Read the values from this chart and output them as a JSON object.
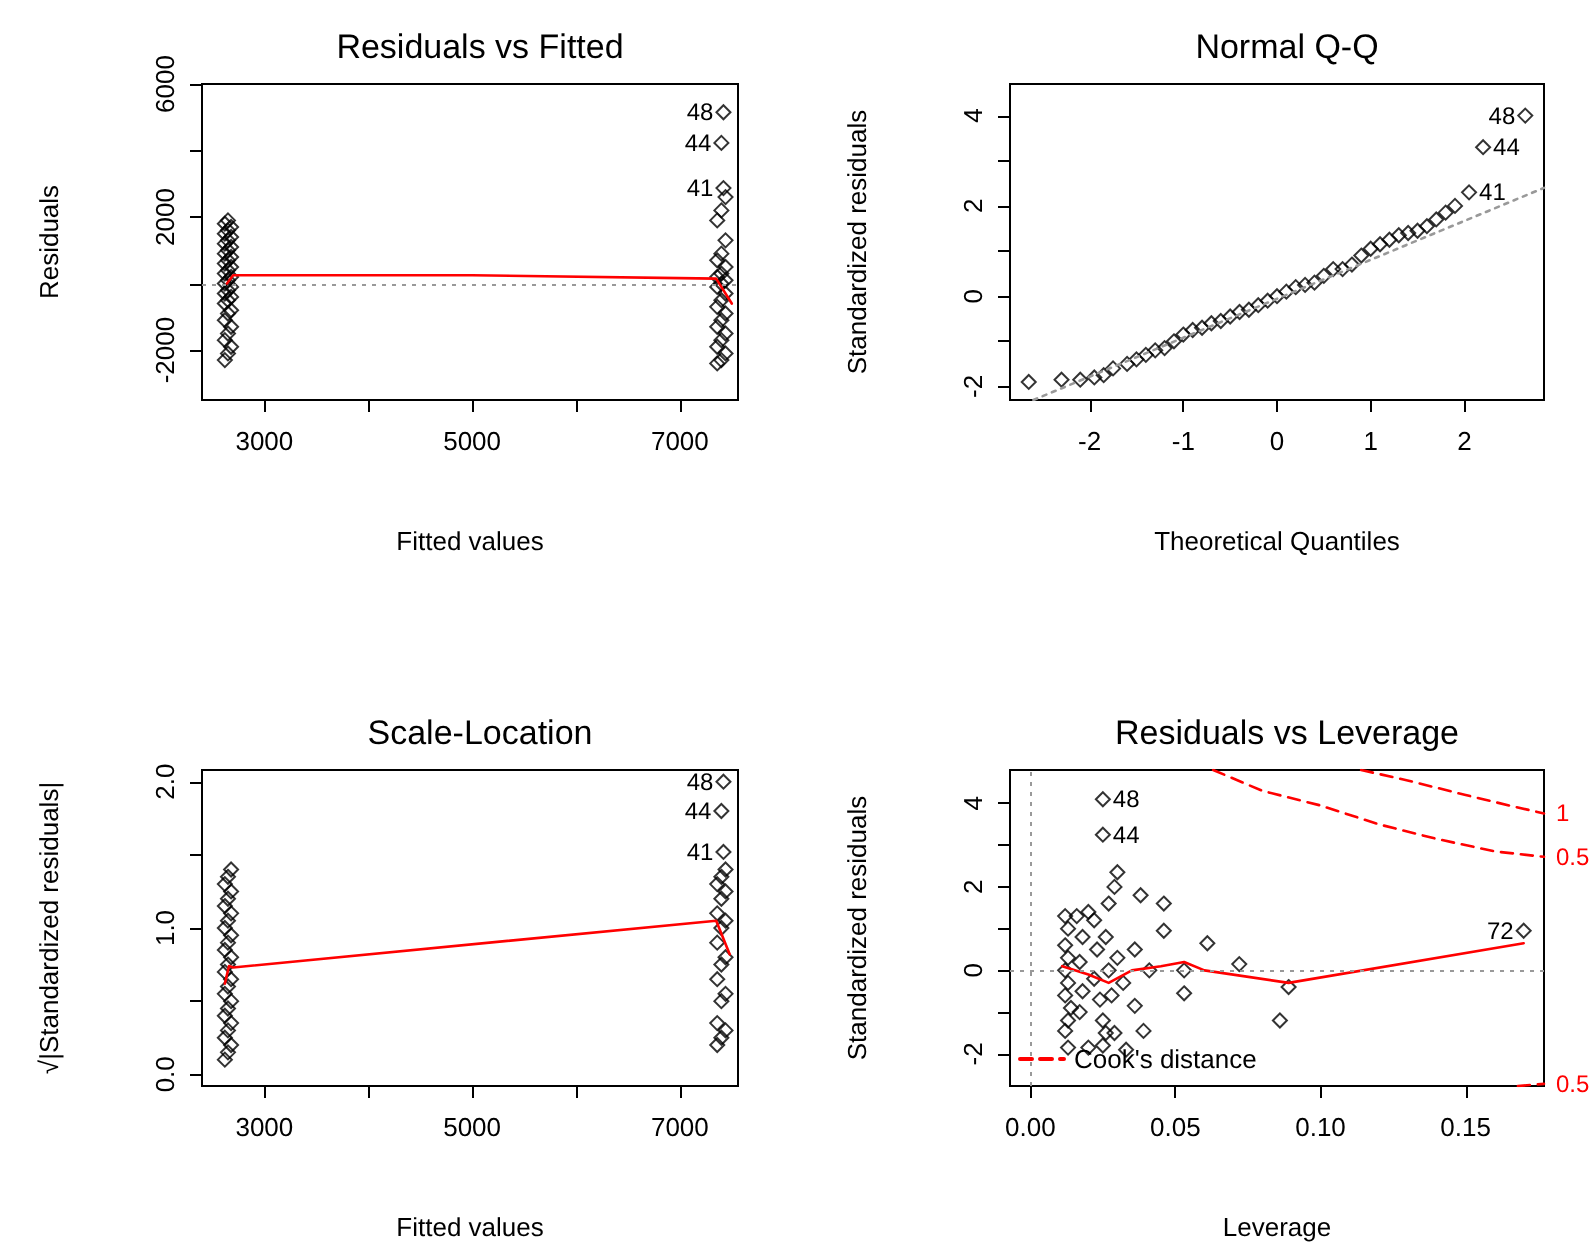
{
  "chart_data": [
    {
      "type": "scatter",
      "title": "Residuals vs Fitted",
      "xlabel": "Fitted values",
      "ylabel": "Residuals",
      "marker": "diamond",
      "grid": false,
      "legend": false,
      "xlim": [
        2400,
        7560
      ],
      "xticks": [
        3000,
        {
          "value": 4000,
          "label": null
        },
        5000,
        {
          "value": 6000,
          "label": null
        },
        7000
      ],
      "ylim": [
        -3500,
        6000
      ],
      "yticks": [
        -2000,
        {
          "value": 0,
          "label": null
        },
        2000,
        {
          "value": 4000,
          "label": null
        },
        6000
      ],
      "series": [
        {
          "color": "#000000",
          "x": [
            2620,
            2650,
            2680,
            2620,
            2650,
            2680,
            2620,
            2650,
            2680,
            2620,
            2650,
            2680,
            2620,
            2650,
            2680,
            2620,
            2650,
            2680,
            2620,
            2650,
            2680,
            2620,
            2650,
            2680,
            2620,
            2650,
            2680,
            2620,
            2650,
            2680,
            2620,
            2650,
            2680,
            2620,
            2650,
            7360,
            7400,
            7440,
            7360,
            7400,
            7440,
            7360,
            7400,
            7440,
            7360,
            7400,
            7440,
            7360,
            7400,
            7440,
            7360,
            7400,
            7440,
            7360,
            7400,
            7440,
            7360,
            7400,
            7440,
            7420,
            7400,
            7420
          ],
          "values": [
            -2300,
            -2100,
            -1900,
            -1700,
            -1500,
            -1300,
            -1100,
            -900,
            -800,
            -600,
            -500,
            -400,
            -300,
            -200,
            -100,
            0,
            100,
            200,
            300,
            400,
            500,
            600,
            700,
            800,
            900,
            1000,
            1100,
            1200,
            1300,
            1400,
            1500,
            1600,
            1700,
            1800,
            1900,
            -2400,
            -2300,
            -2100,
            -1900,
            -1700,
            -1500,
            -1300,
            -1100,
            -900,
            -700,
            -500,
            -300,
            -100,
            0,
            100,
            200,
            300,
            500,
            700,
            900,
            1300,
            1900,
            2200,
            2600,
            2870,
            4230,
            5150
          ]
        },
        {
          "type": "line",
          "marker": "none",
          "color": "#ff0000",
          "x": [
            2640,
            2700,
            5000,
            7350,
            7500
          ],
          "values": [
            0,
            250,
            250,
            150,
            -600
          ]
        }
      ],
      "ref_lines": [
        {
          "axis": "y",
          "value": 0,
          "color": "#999999",
          "line_style": "dotted"
        }
      ],
      "annotations": [
        {
          "text": "48",
          "x": 7420,
          "y": 5150
        },
        {
          "text": "44",
          "x": 7400,
          "y": 4230
        },
        {
          "text": "41",
          "x": 7420,
          "y": 2870
        }
      ]
    },
    {
      "type": "scatter",
      "title": "Normal Q-Q",
      "xlabel": "Theoretical Quantiles",
      "ylabel": "Standardized residuals",
      "marker": "diamond",
      "grid": false,
      "legend": false,
      "xlim": [
        -2.85,
        2.85
      ],
      "xticks": [
        -2,
        -1,
        0,
        1,
        2
      ],
      "ylim": [
        -2.3,
        4.7
      ],
      "yticks": [
        -2,
        {
          "value": -1,
          "label": null
        },
        0,
        {
          "value": 1,
          "label": null
        },
        2,
        {
          "value": 3,
          "label": null
        },
        4
      ],
      "series": [
        {
          "color": "#000000",
          "x": [
            -2.65,
            -2.3,
            -2.1,
            -1.95,
            -1.85,
            -1.75,
            -1.6,
            -1.5,
            -1.4,
            -1.3,
            -1.2,
            -1.1,
            -1.0,
            -0.9,
            -0.8,
            -0.7,
            -0.6,
            -0.5,
            -0.4,
            -0.3,
            -0.2,
            -0.1,
            0,
            0.1,
            0.2,
            0.3,
            0.4,
            0.5,
            0.6,
            0.7,
            0.8,
            0.9,
            1.0,
            1.1,
            1.2,
            1.3,
            1.4,
            1.5,
            1.6,
            1.7,
            1.8,
            1.9,
            2.05,
            2.2,
            2.65
          ],
          "values": [
            -1.9,
            -1.85,
            -1.85,
            -1.8,
            -1.75,
            -1.6,
            -1.5,
            -1.4,
            -1.3,
            -1.2,
            -1.15,
            -1.0,
            -0.85,
            -0.75,
            -0.7,
            -0.6,
            -0.55,
            -0.45,
            -0.35,
            -0.3,
            -0.2,
            -0.1,
            0,
            0.1,
            0.2,
            0.25,
            0.3,
            0.45,
            0.6,
            0.6,
            0.7,
            0.9,
            1.05,
            1.15,
            1.25,
            1.35,
            1.4,
            1.45,
            1.55,
            1.7,
            1.85,
            2.0,
            2.3,
            3.3,
            4.0
          ]
        },
        {
          "type": "line",
          "marker": "none",
          "color": "#999999",
          "line_style": "dotted",
          "x": [
            -2.6,
            2.85
          ],
          "values": [
            -2.3,
            2.4
          ]
        }
      ],
      "annotations": [
        {
          "text": "48",
          "x": 2.65,
          "y": 4.0
        },
        {
          "text": "44",
          "x": 2.2,
          "y": 3.3
        },
        {
          "text": "41",
          "x": 2.05,
          "y": 2.3
        }
      ]
    },
    {
      "type": "scatter",
      "title": "Scale-Location",
      "xlabel": "Fitted values",
      "ylabel": "√|Standardized residuals|",
      "marker": "diamond",
      "grid": false,
      "legend": false,
      "xlim": [
        2400,
        7560
      ],
      "xticks": [
        3000,
        {
          "value": 4000,
          "label": null
        },
        5000,
        {
          "value": 6000,
          "label": null
        },
        7000
      ],
      "ylim": [
        -0.08,
        2.08
      ],
      "yticks": [
        {
          "value": 0,
          "label": "0.0"
        },
        {
          "value": 0.5,
          "label": null
        },
        {
          "value": 1,
          "label": "1.0"
        },
        {
          "value": 1.5,
          "label": null
        },
        {
          "value": 2,
          "label": "2.0"
        }
      ],
      "series": [
        {
          "color": "#000000",
          "x": [
            2620,
            2650,
            2680,
            2620,
            2650,
            2680,
            2620,
            2650,
            2680,
            2620,
            2650,
            2680,
            2620,
            2650,
            2680,
            2620,
            2650,
            2680,
            2620,
            2650,
            2680,
            2620,
            2650,
            2680,
            2620,
            2650,
            2680,
            7360,
            7400,
            7440,
            7360,
            7400,
            7440,
            7360,
            7400,
            7440,
            7360,
            7400,
            7440,
            7360,
            7400,
            7440,
            7360,
            7400,
            7440,
            7420,
            7400,
            7420
          ],
          "values": [
            0.1,
            0.15,
            0.2,
            0.25,
            0.3,
            0.35,
            0.4,
            0.45,
            0.5,
            0.55,
            0.6,
            0.65,
            0.7,
            0.75,
            0.8,
            0.85,
            0.9,
            0.95,
            1.0,
            1.05,
            1.1,
            1.15,
            1.2,
            1.25,
            1.3,
            1.35,
            1.4,
            0.2,
            0.25,
            0.3,
            0.35,
            0.5,
            0.55,
            0.65,
            0.75,
            0.8,
            0.9,
            1.0,
            1.05,
            1.1,
            1.2,
            1.25,
            1.3,
            1.35,
            1.4,
            1.52,
            1.8,
            2.0
          ]
        },
        {
          "type": "line",
          "marker": "none",
          "color": "#ff0000",
          "x": [
            2620,
            2660,
            2700,
            7350,
            7480
          ],
          "values": [
            0.62,
            0.74,
            0.73,
            1.05,
            0.82
          ]
        }
      ],
      "annotations": [
        {
          "text": "48",
          "x": 7420,
          "y": 2.0
        },
        {
          "text": "44",
          "x": 7400,
          "y": 1.8
        },
        {
          "text": "41",
          "x": 7420,
          "y": 1.52
        }
      ]
    },
    {
      "type": "scatter",
      "title": "Residuals vs Leverage",
      "xlabel": "Leverage",
      "ylabel": "Standardized residuals",
      "marker": "diamond",
      "grid": false,
      "legend": "bottom left",
      "xlim": [
        -0.007,
        0.177
      ],
      "xticks": [
        {
          "value": 0,
          "label": "0.00"
        },
        0.05,
        {
          "value": 0.1,
          "label": "0.10"
        },
        0.15
      ],
      "ylim": [
        -2.77,
        4.8
      ],
      "yticks": [
        -2,
        {
          "value": -1,
          "label": null
        },
        0,
        {
          "value": 1,
          "label": null
        },
        2,
        {
          "value": 3,
          "label": null
        },
        4
      ],
      "series": [
        {
          "color": "#000000",
          "x": [
            0.025,
            0.025,
            0.03,
            0.029,
            0.027,
            0.038,
            0.046,
            0.046,
            0.036,
            0.061,
            0.072,
            0.053,
            0.041,
            0.053,
            0.036,
            0.089,
            0.086,
            0.039,
            0.033,
            0.02,
            0.013,
            0.025,
            0.17,
            0.012,
            0.013,
            0.012,
            0.013,
            0.012,
            0.013,
            0.012,
            0.014,
            0.013,
            0.012,
            0.016,
            0.018,
            0.017,
            0.018,
            0.017,
            0.02,
            0.022,
            0.023,
            0.022,
            0.024,
            0.025,
            0.026,
            0.026,
            0.027,
            0.028,
            0.03,
            0.029,
            0.032
          ],
          "values": [
            4.1,
            3.25,
            2.35,
            2.0,
            1.6,
            1.8,
            1.6,
            0.95,
            0.5,
            0.65,
            0.15,
            0.0,
            0.0,
            -0.55,
            -0.85,
            -0.4,
            -1.2,
            -1.45,
            -1.9,
            -1.85,
            -1.85,
            -1.8,
            0.95,
            1.3,
            1.0,
            0.6,
            0.3,
            0,
            -0.3,
            -0.6,
            -0.9,
            -1.2,
            -1.45,
            1.3,
            0.8,
            0.2,
            -0.5,
            -1.0,
            1.4,
            1.2,
            0.5,
            -0.2,
            -0.7,
            -1.2,
            -1.5,
            0.8,
            0.0,
            -0.6,
            0.3,
            -1.5,
            -0.3
          ]
        },
        {
          "type": "line",
          "marker": "none",
          "color": "#ff0000",
          "x": [
            0.011,
            0.02,
            0.027,
            0.035,
            0.045,
            0.053,
            0.06,
            0.089,
            0.17
          ],
          "values": [
            0.1,
            -0.1,
            -0.3,
            0.0,
            0.1,
            0.2,
            0.0,
            -0.3,
            0.65
          ]
        },
        {
          "type": "line",
          "marker": "none",
          "name": "Cook's distance",
          "color": "#ff0000",
          "line_style": "dashed",
          "x": [
            0.063,
            0.08,
            0.1,
            0.12,
            0.14,
            0.16,
            0.177
          ],
          "values": [
            4.8,
            4.3,
            3.95,
            3.5,
            3.15,
            2.85,
            2.72
          ]
        },
        {
          "type": "line",
          "marker": "none",
          "color": "#ff0000",
          "line_style": "dashed",
          "x": [
            0.114,
            0.13,
            0.15,
            0.165,
            0.177
          ],
          "values": [
            4.8,
            4.55,
            4.2,
            3.95,
            3.76
          ]
        },
        {
          "type": "line",
          "marker": "none",
          "color": "#ff0000",
          "line_style": "dashed",
          "x": [
            0.168,
            0.177
          ],
          "values": [
            -2.77,
            -2.72
          ]
        }
      ],
      "ref_lines": [
        {
          "axis": "y",
          "value": 0,
          "color": "#999999",
          "line_style": "dotted"
        },
        {
          "axis": "x",
          "value": 0,
          "color": "#999999",
          "line_style": "dotted"
        }
      ],
      "annotations": [
        {
          "text": "48",
          "x": 0.025,
          "y": 4.1
        },
        {
          "text": "44",
          "x": 0.025,
          "y": 3.25
        },
        {
          "text": "72",
          "x": 0.17,
          "y": 0.95
        },
        {
          "text": "1",
          "x": 0.177,
          "y": 3.76
        },
        {
          "text": "0.5",
          "x": 0.177,
          "y": 2.72
        },
        {
          "text": "0.5",
          "x": 0.177,
          "y": -2.72
        }
      ]
    }
  ]
}
